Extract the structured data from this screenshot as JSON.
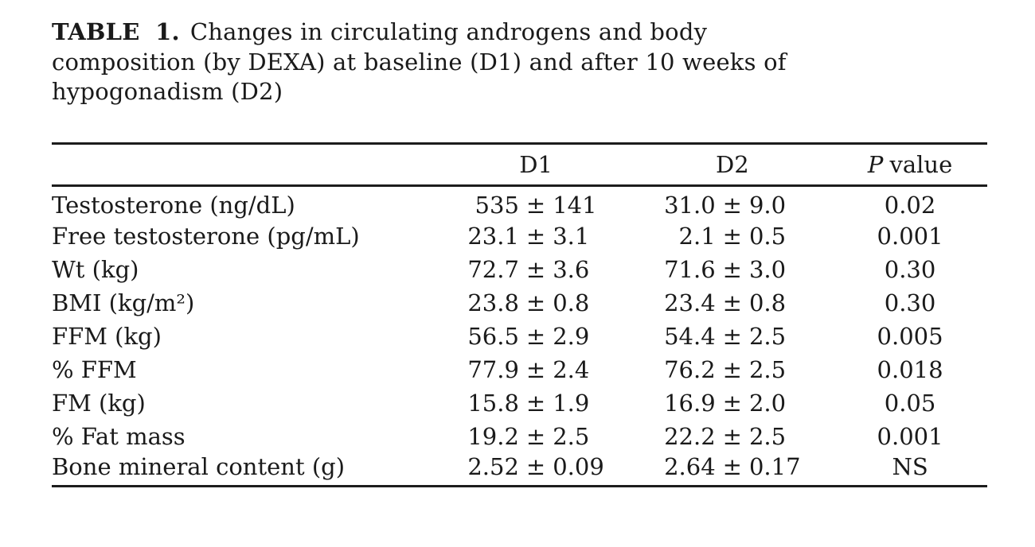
{
  "page": {
    "background": "#ffffff",
    "text_color": "#1a1a1a",
    "rule_color": "#1c1c1c"
  },
  "title": {
    "label": "TABLE 1.",
    "lines": [
      "Changes in circulating androgens and body",
      "composition (by DEXA) at baseline (D1) and after 10 weeks of",
      "hypogonadism (D2)"
    ]
  },
  "table": {
    "pm_symbol": "±",
    "header": {
      "label_col": "",
      "d1": "D1",
      "d2": "D2",
      "p_italic": "P",
      "p_rest": "value"
    },
    "rows": [
      {
        "label": "Testosterone (ng/dL)",
        "d1_mean": "535",
        "d1_sd": "141",
        "d2_mean": "31.0",
        "d2_sd": "9.0",
        "p": "0.02"
      },
      {
        "label": "Free testosterone (pg/mL)",
        "d1_mean": "23.1",
        "d1_sd": "3.1",
        "d2_mean": "2.1",
        "d2_sd": "0.5",
        "p": "0.001"
      },
      {
        "label": "Wt (kg)",
        "d1_mean": "72.7",
        "d1_sd": "3.6",
        "d2_mean": "71.6",
        "d2_sd": "3.0",
        "p": "0.30"
      },
      {
        "label": "BMI (kg/m²)",
        "d1_mean": "23.8",
        "d1_sd": "0.8",
        "d2_mean": "23.4",
        "d2_sd": "0.8",
        "p": "0.30"
      },
      {
        "label": "FFM (kg)",
        "d1_mean": "56.5",
        "d1_sd": "2.9",
        "d2_mean": "54.4",
        "d2_sd": "2.5",
        "p": "0.005"
      },
      {
        "label": "% FFM",
        "d1_mean": "77.9",
        "d1_sd": "2.4",
        "d2_mean": "76.2",
        "d2_sd": "2.5",
        "p": "0.018"
      },
      {
        "label": "FM (kg)",
        "d1_mean": "15.8",
        "d1_sd": "1.9",
        "d2_mean": "16.9",
        "d2_sd": "2.0",
        "p": "0.05"
      },
      {
        "label": "% Fat mass",
        "d1_mean": "19.2",
        "d1_sd": "2.5",
        "d2_mean": "22.2",
        "d2_sd": "2.5",
        "p": "0.001"
      },
      {
        "label": "Bone mineral content (g)",
        "d1_mean": "2.52",
        "d1_sd": "0.09",
        "d2_mean": "2.64",
        "d2_sd": "0.17",
        "p": "NS"
      }
    ]
  }
}
